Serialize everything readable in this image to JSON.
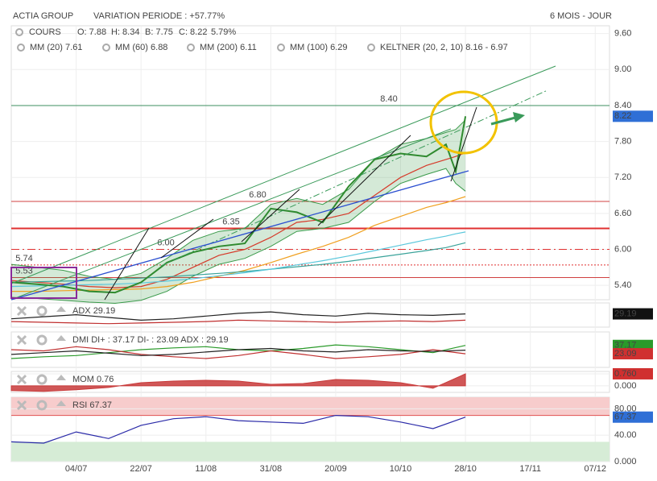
{
  "header": {
    "title": "ACTIA GROUP",
    "variation": "VARIATION PERIODE : +57.77%",
    "period": "6 MOIS - JOUR"
  },
  "chart_data": [
    {
      "type": "line",
      "info": [
        "O: 7.88",
        "H: 8.34",
        "B: 7.75",
        "C: 8.22",
        "5.79%"
      ],
      "x": [
        -1,
        -0.6,
        -0.2,
        0.2,
        0.6,
        1,
        1.4,
        1.8,
        2.2,
        2.6,
        3,
        3.4,
        3.8,
        4.2,
        4.6,
        5,
        5.4,
        5.7,
        5.85,
        6
      ],
      "xlim": [
        -1.0,
        8.22
      ],
      "xticks": [
        {
          "value": 0,
          "label": "04/07"
        },
        {
          "value": 1,
          "label": "22/07"
        },
        {
          "value": 2,
          "label": "11/08"
        },
        {
          "value": 3,
          "label": "31/08"
        },
        {
          "value": 4,
          "label": "20/09"
        },
        {
          "value": 5,
          "label": "10/10"
        },
        {
          "value": 6,
          "label": "28/10"
        },
        {
          "value": 7,
          "label": "17/11"
        },
        {
          "value": 8,
          "label": "07/12"
        }
      ],
      "ylim": [
        5.16,
        9.73
      ],
      "yticks": [
        {
          "value": 9.6,
          "label": "9.60"
        },
        {
          "value": 9,
          "label": "9.00"
        },
        {
          "value": 8.4,
          "label": "8.40"
        },
        {
          "value": 7.8,
          "label": "7.80"
        },
        {
          "value": 7.2,
          "label": "7.20"
        },
        {
          "value": 6.6,
          "label": "6.60"
        },
        {
          "value": 6,
          "label": "6.00"
        },
        {
          "value": 5.4,
          "label": "5.40"
        }
      ],
      "levels": [
        {
          "value": 8.4,
          "label": "8.40",
          "color": "#3d8f5f",
          "style": "solid"
        },
        {
          "value": 6.8,
          "label": "6.80",
          "color": "#d04040",
          "style": "solid"
        },
        {
          "value": 6.35,
          "label": "6.35",
          "color": "#e03030",
          "style": "thick"
        },
        {
          "value": 6,
          "label": "6.00",
          "color": "#e03030",
          "style": "dashdot"
        },
        {
          "value": 5.74,
          "label": "5.74",
          "color": "#e03030",
          "style": "dotted"
        },
        {
          "value": 5.53,
          "label": "5.53",
          "color": "#d04040",
          "style": "solid"
        }
      ],
      "series": [
        {
          "name": "KELTNER (20, 2, 10)",
          "legend_value": "8.16 - 6.97",
          "type": "band",
          "color": "#3a9a4a",
          "upper": [
            5.75,
            5.7,
            5.65,
            5.55,
            5.5,
            5.6,
            5.85,
            6.15,
            6.3,
            6.35,
            6.75,
            6.85,
            6.75,
            7.0,
            7.5,
            7.75,
            7.85,
            7.95,
            8.0,
            8.16
          ],
          "lower": [
            5.2,
            5.18,
            5.15,
            5.12,
            5.1,
            5.15,
            5.3,
            5.55,
            5.75,
            5.85,
            6.05,
            6.3,
            6.35,
            6.45,
            6.8,
            7.1,
            7.25,
            7.35,
            7.1,
            6.97
          ]
        },
        {
          "name": "MM (20)",
          "legend_value": "7.61",
          "color": "#d63a2a",
          "values": [
            5.48,
            5.45,
            5.42,
            5.38,
            5.36,
            5.38,
            5.5,
            5.7,
            5.9,
            6.0,
            6.2,
            6.45,
            6.5,
            6.6,
            6.9,
            7.2,
            7.4,
            7.5,
            7.55,
            7.61
          ]
        },
        {
          "name": "MM (60)",
          "legend_value": "6.88",
          "color": "#f0a020",
          "values": [
            5.3,
            5.3,
            5.31,
            5.32,
            5.33,
            5.34,
            5.38,
            5.45,
            5.55,
            5.65,
            5.78,
            5.92,
            6.05,
            6.2,
            6.4,
            6.55,
            6.7,
            6.78,
            6.83,
            6.88
          ]
        },
        {
          "name": "MM (200)",
          "legend_value": "6.11",
          "color": "#3aa39a",
          "values": [
            5.45,
            5.46,
            5.47,
            5.48,
            5.5,
            5.52,
            5.54,
            5.57,
            5.6,
            5.63,
            5.67,
            5.71,
            5.75,
            5.8,
            5.86,
            5.92,
            5.98,
            6.03,
            6.07,
            6.11
          ]
        },
        {
          "name": "MM (100)",
          "legend_value": "6.29",
          "color": "#5bc8dc",
          "values": [
            5.38,
            5.39,
            5.4,
            5.41,
            5.42,
            5.44,
            5.47,
            5.51,
            5.56,
            5.61,
            5.67,
            5.74,
            5.81,
            5.89,
            5.98,
            6.07,
            6.16,
            6.22,
            6.26,
            6.29
          ]
        },
        {
          "name": "COURS",
          "color": "#2f8a2f",
          "last_label": "8.22",
          "badge": "#2f6fd6",
          "values": [
            5.45,
            5.42,
            5.38,
            5.3,
            5.28,
            5.45,
            5.78,
            5.95,
            6.05,
            6.1,
            6.68,
            6.62,
            6.45,
            7.05,
            7.5,
            7.6,
            7.55,
            7.75,
            7.3,
            8.22
          ]
        }
      ]
    },
    {
      "type": "line",
      "x": [
        -1,
        -0.5,
        0,
        0.5,
        1,
        1.5,
        2,
        2.5,
        3,
        3.5,
        4,
        4.5,
        5,
        5.5,
        6
      ],
      "ylim": [
        10,
        45
      ],
      "series": [
        {
          "color": "#c03030",
          "values": [
            18,
            17,
            16,
            15,
            16,
            17,
            18,
            20,
            19,
            18,
            17,
            18,
            19,
            18,
            20
          ]
        },
        {
          "name": "ADX",
          "legend_value": "29.19",
          "color": "#222222",
          "last_label": "29.19",
          "badge": "#111111",
          "values": [
            22,
            25,
            28,
            24,
            20,
            22,
            26,
            30,
            32,
            28,
            26,
            30,
            28,
            27,
            29.19
          ]
        }
      ]
    },
    {
      "type": "line",
      "label": "DMI",
      "x": [
        -1,
        -0.5,
        0,
        0.5,
        1,
        1.5,
        2,
        2.5,
        3,
        3.5,
        4,
        4.5,
        5,
        5.5,
        6
      ],
      "ylim": [
        0,
        60
      ],
      "series": [
        {
          "name": "DI+ :",
          "legend_value": "37.17",
          "color": "#2a9a2a",
          "last_label": "37.17",
          "badge": "#2a9a2a",
          "values": [
            15,
            18,
            20,
            25,
            30,
            33,
            35,
            30,
            28,
            32,
            38,
            35,
            30,
            25,
            37.17
          ]
        },
        {
          "name": "DI- :",
          "legend_value": "23.09",
          "color": "#c03030",
          "last_label": "23.09",
          "badge": "#d03030",
          "values": [
            30,
            28,
            35,
            30,
            22,
            18,
            15,
            20,
            28,
            22,
            15,
            18,
            22,
            30,
            23.09
          ]
        },
        {
          "name": "ADX :",
          "legend_value": "29.19",
          "color": "#222222",
          "values": [
            22,
            25,
            28,
            24,
            20,
            22,
            26,
            30,
            32,
            28,
            26,
            30,
            28,
            27,
            29.19
          ]
        }
      ]
    },
    {
      "type": "area",
      "x": [
        -1,
        -0.5,
        0,
        0.5,
        1,
        1.5,
        2,
        2.5,
        3,
        3.5,
        4,
        4.5,
        5,
        5.5,
        6
      ],
      "ylim": [
        -0.41,
        0.91
      ],
      "yticks": [
        {
          "value": 0.76,
          "label": "0.760",
          "badge": "#d03030"
        },
        {
          "value": 0,
          "label": "0.000"
        }
      ],
      "series": [
        {
          "name": "MOM",
          "legend_value": "0.76",
          "color": "#c83a3a",
          "values": [
            -0.3,
            -0.35,
            -0.25,
            -0.1,
            0.2,
            0.3,
            0.35,
            0.3,
            0.1,
            0.15,
            0.4,
            0.35,
            0.2,
            -0.15,
            0.76
          ]
        }
      ]
    },
    {
      "type": "line",
      "x": [
        -1,
        -0.5,
        0,
        0.5,
        1,
        1.5,
        2,
        2.5,
        3,
        3.5,
        4,
        4.5,
        5,
        5.5,
        6
      ],
      "ylim": [
        0,
        97.5
      ],
      "yticks": [
        {
          "value": 80,
          "label": "80.00"
        },
        {
          "value": 40,
          "label": "40.00"
        },
        {
          "value": 0,
          "label": "0.000"
        }
      ],
      "zones": [
        {
          "from": 70,
          "to": 97.5,
          "color": "#f7cccc"
        },
        {
          "from": 0,
          "to": 30,
          "color": "#d6ecd6"
        }
      ],
      "series": [
        {
          "name": "RSI",
          "legend_value": "67.37",
          "color": "#2a2aa8",
          "last_label": "67.37",
          "badge": "#2f6fd6",
          "values": [
            30,
            28,
            45,
            35,
            55,
            65,
            68,
            62,
            60,
            58,
            70,
            68,
            60,
            50,
            67.37
          ]
        }
      ]
    }
  ]
}
